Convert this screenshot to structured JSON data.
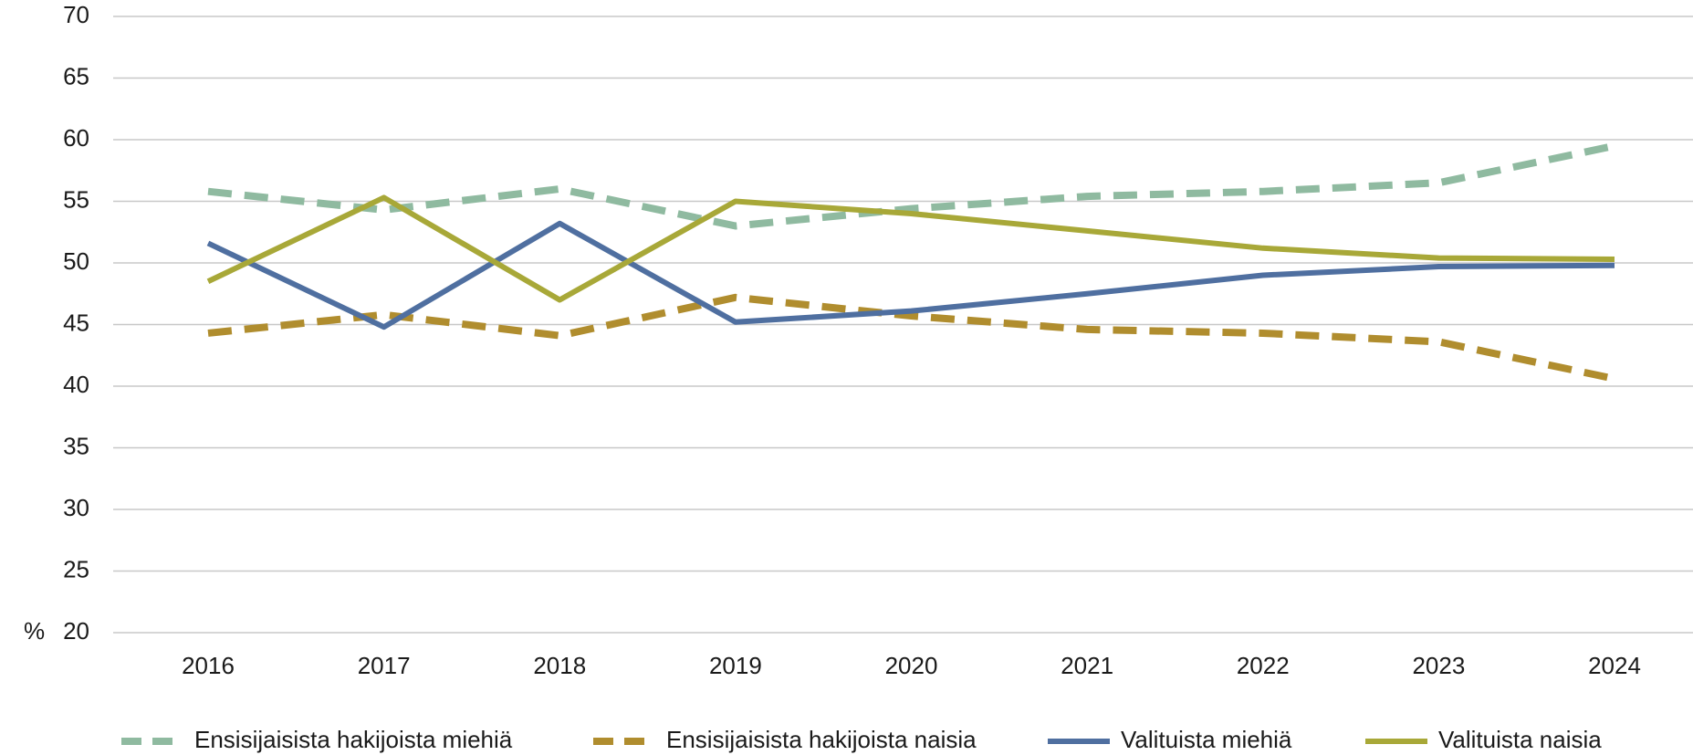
{
  "chart_data": {
    "type": "line",
    "y_label": "%",
    "categories": [
      "2016",
      "2017",
      "2018",
      "2019",
      "2020",
      "2021",
      "2022",
      "2023",
      "2024"
    ],
    "series": [
      {
        "name": "Ensisijaisista hakijoista miehiä",
        "color": "#8fbaa0",
        "dashed": true,
        "values": [
          55.8,
          54.3,
          56.0,
          53.0,
          54.4,
          55.4,
          55.8,
          56.5,
          59.5
        ]
      },
      {
        "name": "Ensisijaisista hakijoista naisia",
        "color": "#b08d2e",
        "dashed": true,
        "values": [
          44.3,
          45.8,
          44.1,
          47.2,
          45.7,
          44.6,
          44.3,
          43.6,
          40.6
        ]
      },
      {
        "name": "Valituista miehiä",
        "color": "#4f6fa0",
        "dashed": false,
        "values": [
          51.6,
          44.8,
          53.2,
          45.2,
          46.1,
          47.5,
          49.0,
          49.7,
          49.8
        ]
      },
      {
        "name": "Valituista naisia",
        "color": "#a8a838",
        "dashed": false,
        "values": [
          48.5,
          55.3,
          47.0,
          55.0,
          54.0,
          52.6,
          51.2,
          50.4,
          50.3
        ]
      }
    ],
    "ylim": [
      20,
      70
    ],
    "yticks": [
      20,
      25,
      30,
      35,
      40,
      45,
      50,
      55,
      60,
      65,
      70
    ],
    "grid": true
  }
}
